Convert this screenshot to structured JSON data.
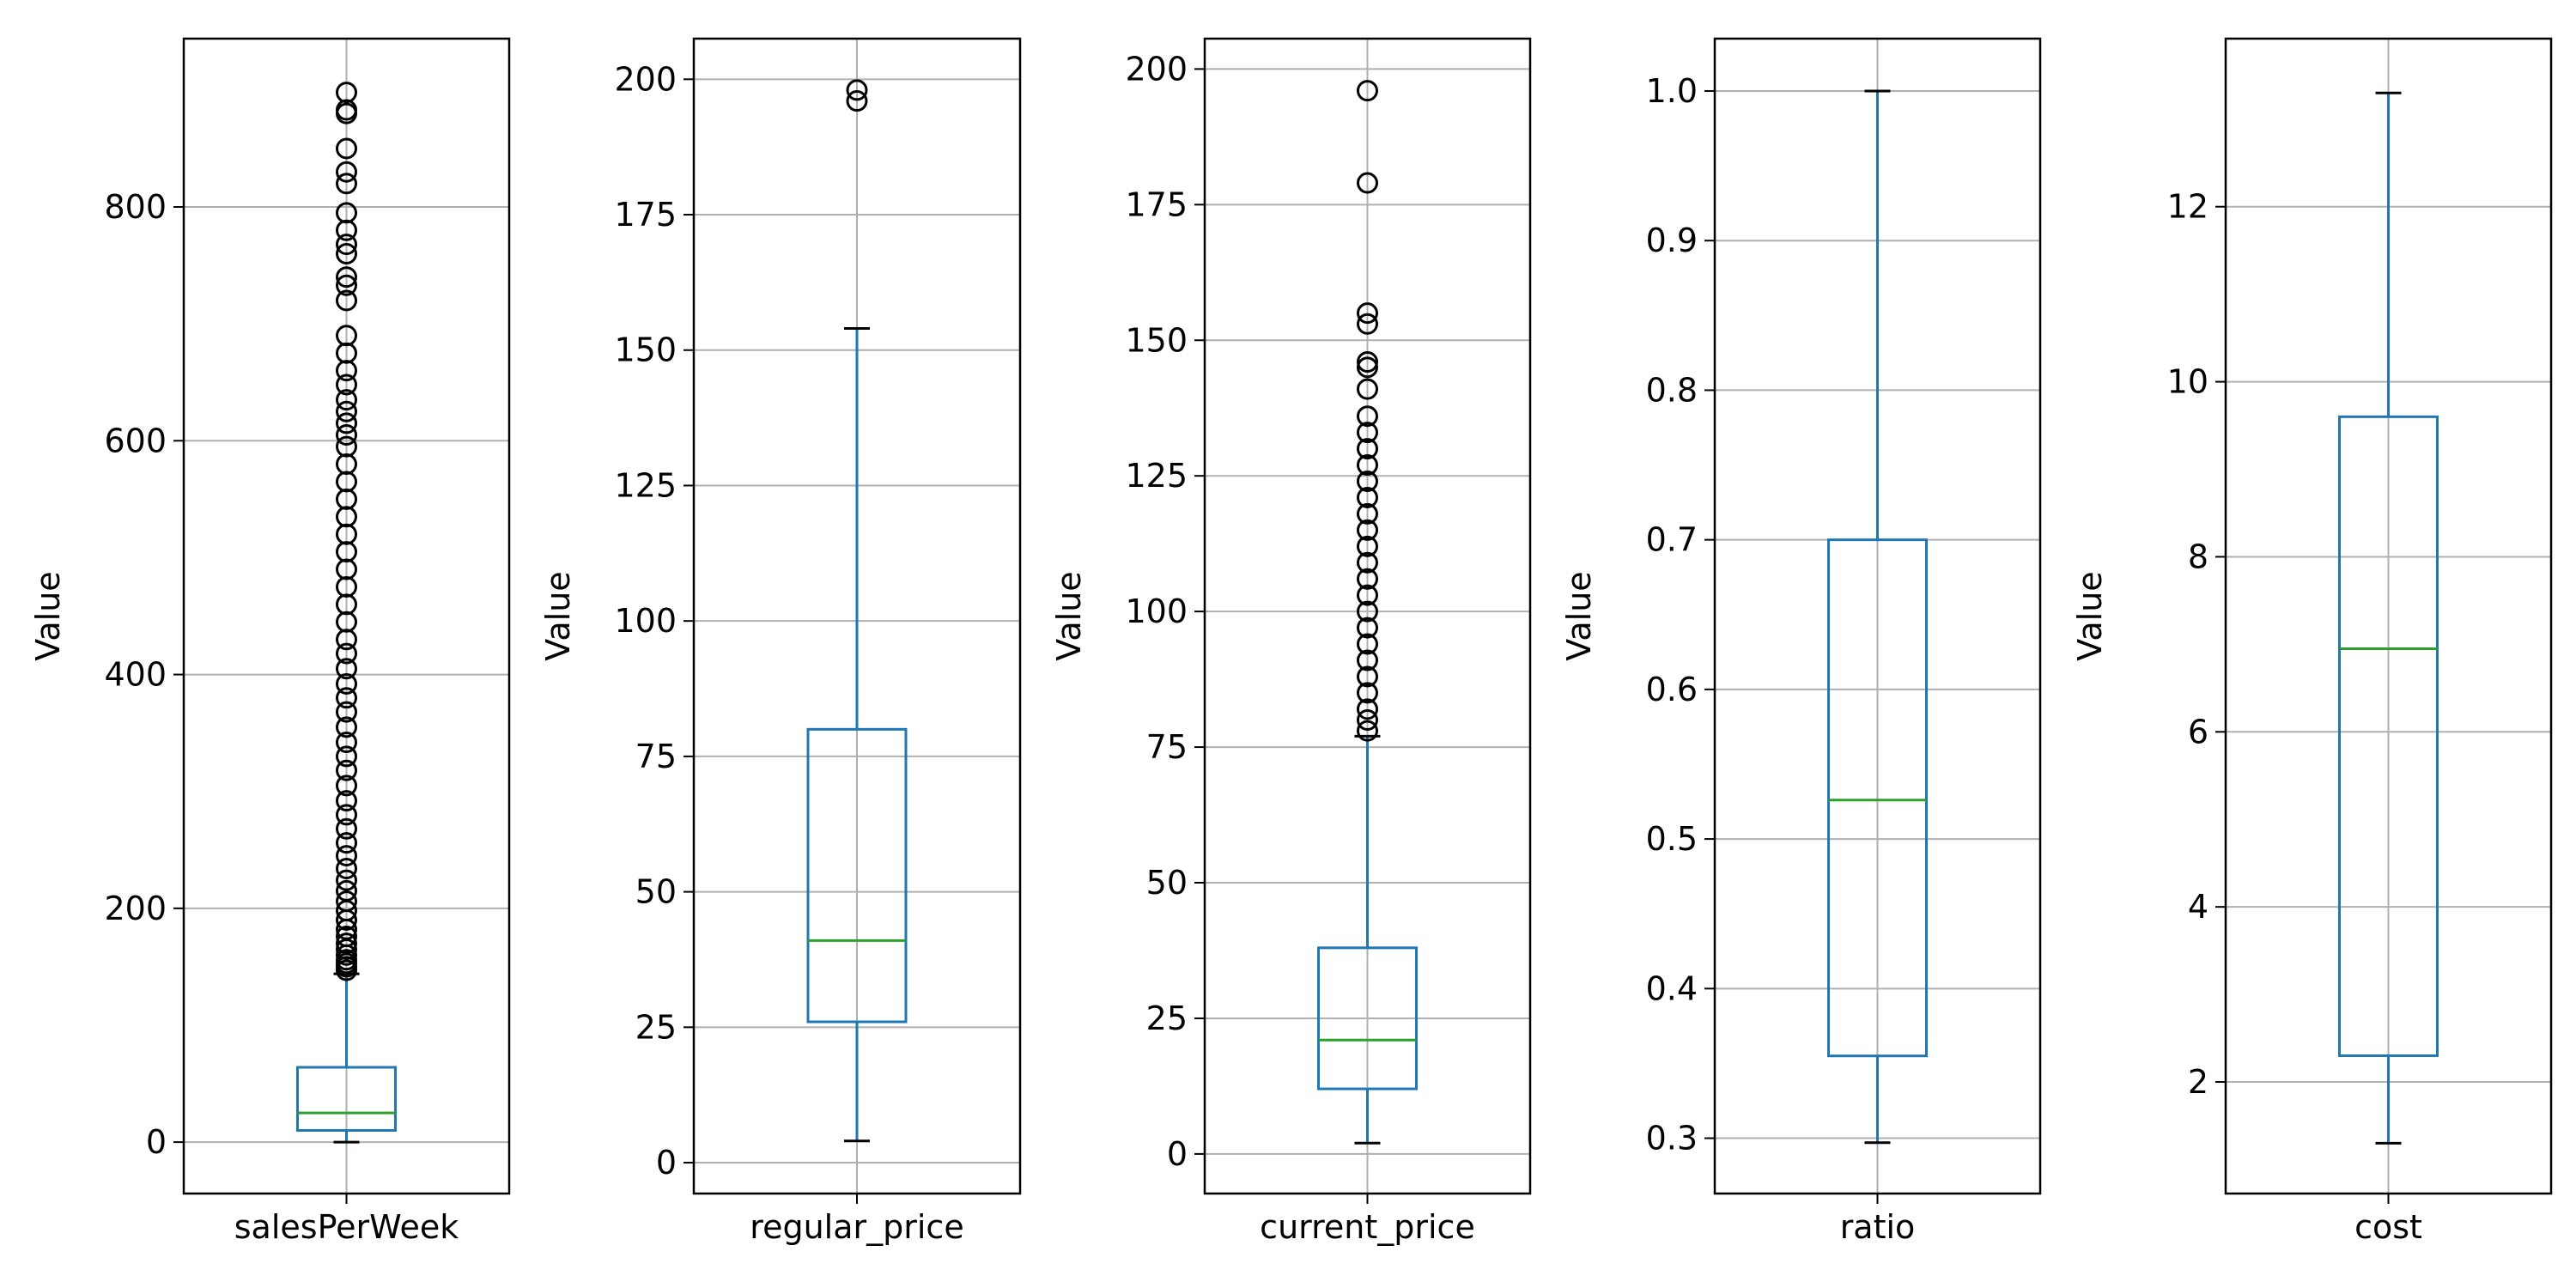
{
  "colors": {
    "box": "#1f77b4",
    "median": "#2ca02c",
    "grid": "#b0b0b0",
    "outlier_edge": "#000000",
    "frame": "#000000",
    "background": "#ffffff"
  },
  "chart_data": [
    {
      "type": "box",
      "category": "salesPerWeek",
      "ylabel": "Value",
      "ylim": [
        -44,
        944
      ],
      "yticks": [
        0,
        200,
        400,
        600,
        800
      ],
      "grid": true,
      "stats": {
        "whisker_low": 0,
        "q1": 10,
        "median": 25,
        "q3": 64,
        "whisker_high": 144
      },
      "outliers": [
        147,
        150,
        153,
        156,
        160,
        165,
        170,
        176,
        182,
        190,
        198,
        206,
        215,
        224,
        234,
        245,
        256,
        268,
        280,
        292,
        305,
        318,
        330,
        342,
        355,
        368,
        380,
        392,
        405,
        418,
        430,
        445,
        460,
        475,
        490,
        505,
        520,
        535,
        550,
        565,
        580,
        595,
        605,
        615,
        625,
        635,
        648,
        660,
        675,
        690,
        720,
        733,
        740,
        760,
        768,
        780,
        795,
        820,
        830,
        850,
        880,
        883,
        898
      ]
    },
    {
      "type": "box",
      "category": "regular_price",
      "ylabel": "Value",
      "ylim": [
        -5.7,
        207.5
      ],
      "yticks": [
        0,
        25,
        50,
        75,
        100,
        125,
        150,
        175,
        200
      ],
      "grid": true,
      "stats": {
        "whisker_low": 4,
        "q1": 26,
        "median": 41,
        "q3": 80,
        "whisker_high": 154
      },
      "outliers": [
        196,
        198
      ]
    },
    {
      "type": "box",
      "category": "current_price",
      "ylabel": "Value",
      "ylim": [
        -7.3,
        205.6
      ],
      "yticks": [
        0,
        25,
        50,
        75,
        100,
        125,
        150,
        175,
        200
      ],
      "grid": true,
      "stats": {
        "whisker_low": 2,
        "q1": 12,
        "median": 21,
        "q3": 38,
        "whisker_high": 77
      },
      "outliers": [
        78,
        80,
        82,
        85,
        88,
        91,
        94,
        97,
        100,
        103,
        106,
        109,
        112,
        115,
        118,
        121,
        124,
        127,
        130,
        133,
        136,
        141,
        145,
        146,
        153,
        155,
        179,
        196
      ]
    },
    {
      "type": "box",
      "category": "ratio",
      "ylabel": "Value",
      "ylim": [
        0.263,
        1.035
      ],
      "yticks": [
        0.3,
        0.4,
        0.5,
        0.6,
        0.7,
        0.8,
        0.9,
        1.0
      ],
      "ytick_labels": [
        "0.3",
        "0.4",
        "0.5",
        "0.6",
        "0.7",
        "0.8",
        "0.9",
        "1.0"
      ],
      "grid": true,
      "stats": {
        "whisker_low": 0.297,
        "q1": 0.355,
        "median": 0.526,
        "q3": 0.7,
        "whisker_high": 1.0
      },
      "outliers": []
    },
    {
      "type": "box",
      "category": "cost",
      "ylabel": "Value",
      "ylim": [
        0.725,
        13.92
      ],
      "yticks": [
        2,
        4,
        6,
        8,
        10,
        12
      ],
      "grid": true,
      "stats": {
        "whisker_low": 1.3,
        "q1": 2.3,
        "median": 6.95,
        "q3": 9.6,
        "whisker_high": 13.3
      },
      "outliers": []
    }
  ]
}
